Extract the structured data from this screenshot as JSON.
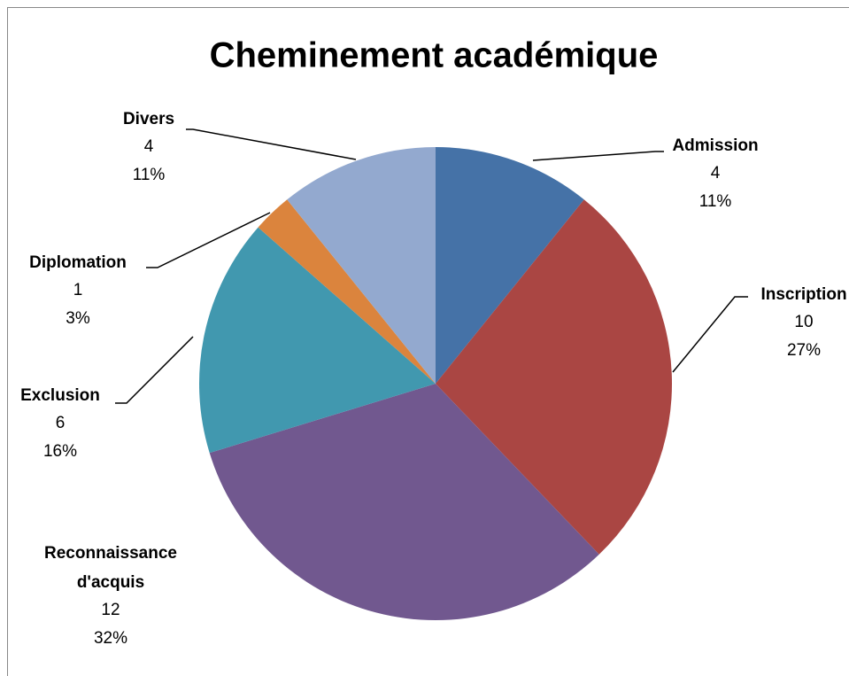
{
  "chart_data": {
    "type": "pie",
    "title": "Cheminement académique",
    "categories": [
      "Admission",
      "Inscription",
      "Reconnaissance d'acquis",
      "Exclusion",
      "Diplomation",
      "Divers"
    ],
    "values": [
      4,
      10,
      12,
      6,
      1,
      4
    ],
    "percent_labels": [
      "11%",
      "27%",
      "32%",
      "16%",
      "3%",
      "11%"
    ],
    "colors": [
      "#4572a7",
      "#aa4643",
      "#71588f",
      "#4198af",
      "#db843d",
      "#93a9cf"
    ]
  }
}
